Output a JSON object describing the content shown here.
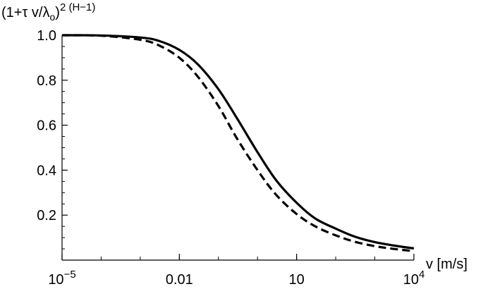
{
  "chart_data": {
    "type": "line",
    "xscale": "log",
    "xlim": [
      1e-05,
      10000
    ],
    "ylim": [
      0,
      1.0
    ],
    "grid": false,
    "xlabel": "v [m/s]",
    "ylabel": {
      "base": "(1+τ v/λ",
      "sub": "o",
      "close": ")",
      "exp": "2 (H−1)"
    },
    "x_ticks": [
      {
        "value": 1e-05,
        "label": "10",
        "exp": "−5"
      },
      {
        "value": 0.01,
        "label": "0.01",
        "exp": ""
      },
      {
        "value": 10,
        "label": "10",
        "exp": ""
      },
      {
        "value": 10000,
        "label": "10",
        "exp": "4"
      }
    ],
    "y_ticks": [
      {
        "value": 0.2,
        "label": "0.2"
      },
      {
        "value": 0.4,
        "label": "0.4"
      },
      {
        "value": 0.6,
        "label": "0.6"
      },
      {
        "value": 0.8,
        "label": "0.8"
      },
      {
        "value": 1.0,
        "label": "1.0"
      }
    ],
    "series": [
      {
        "style": "solid",
        "x": [
          1e-05,
          0.0001,
          0.001,
          0.003,
          0.01,
          0.03,
          0.1,
          0.3,
          1,
          3,
          10,
          30,
          100,
          300,
          1000,
          3000,
          10000
        ],
        "y": [
          1.0,
          0.999,
          0.99,
          0.975,
          0.935,
          0.87,
          0.76,
          0.63,
          0.48,
          0.355,
          0.255,
          0.185,
          0.14,
          0.105,
          0.08,
          0.065,
          0.052
        ]
      },
      {
        "style": "dashed",
        "x": [
          1e-05,
          0.0001,
          0.001,
          0.003,
          0.01,
          0.03,
          0.1,
          0.3,
          1,
          3,
          10,
          30,
          100,
          300,
          1000,
          3000,
          10000
        ],
        "y": [
          1.0,
          0.998,
          0.98,
          0.955,
          0.9,
          0.815,
          0.685,
          0.54,
          0.4,
          0.29,
          0.205,
          0.15,
          0.11,
          0.082,
          0.062,
          0.05,
          0.04
        ]
      }
    ]
  }
}
